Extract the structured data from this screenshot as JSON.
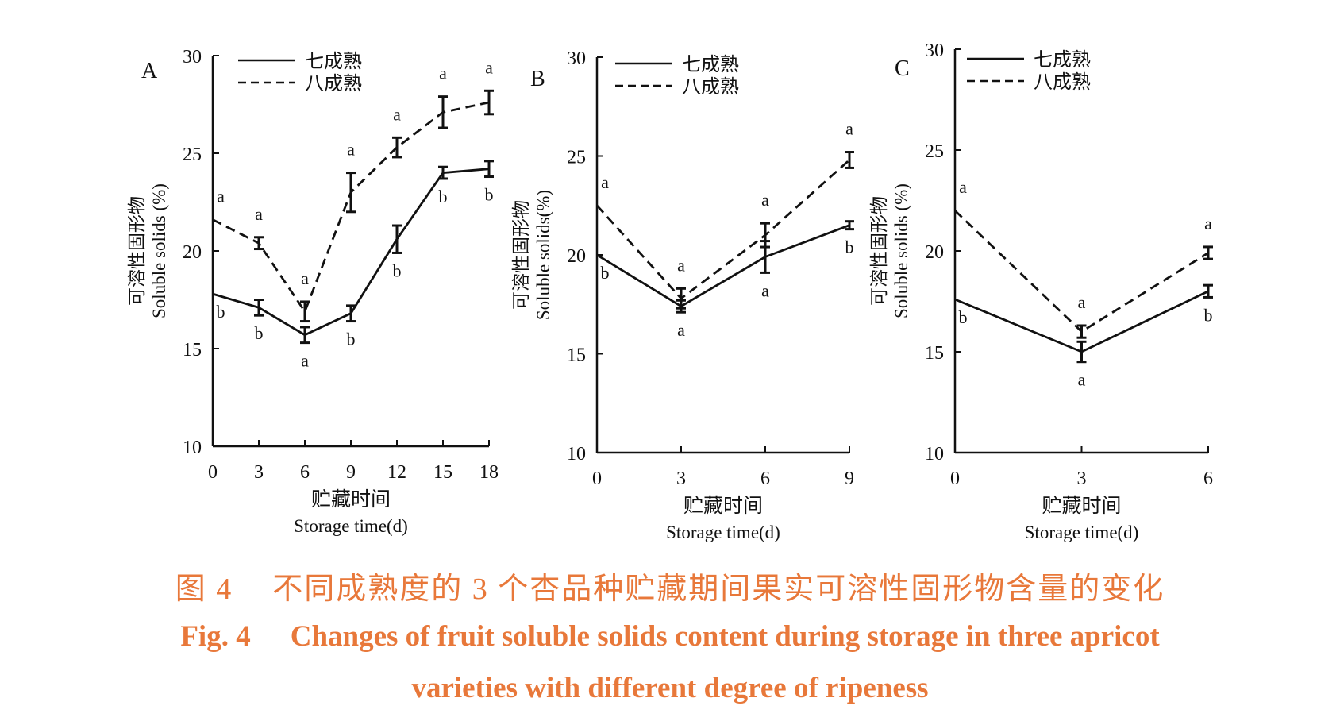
{
  "caption": {
    "cn_prefix": "图 4",
    "cn_text": "不同成熟度的 3 个杏品种贮藏期间果实可溶性固形物含量的变化",
    "en_prefix": "Fig. 4",
    "en_line1": "Changes of fruit soluble solids content during storage in three apricot",
    "en_line2": "varieties with different degree of ripeness"
  },
  "colors": {
    "line": "#111111",
    "caption": "#e8783a"
  },
  "chart_data": [
    {
      "panel": "A",
      "type": "line",
      "x": [
        0,
        3,
        6,
        9,
        12,
        15,
        18
      ],
      "xlim": [
        0,
        18
      ],
      "ylim": [
        10,
        30
      ],
      "yticks": [
        10,
        15,
        20,
        25,
        30
      ],
      "ylabel_cn": "可溶性固形物",
      "ylabel_en": "Soluble solids (%)",
      "xlabel_cn": "贮藏时间",
      "xlabel_en": "Storage time(d)",
      "legend_position": "top-left",
      "series": [
        {
          "name": "七成熟",
          "style": "solid",
          "values": [
            17.8,
            17.1,
            15.7,
            16.8,
            20.6,
            24.0,
            24.2
          ],
          "errors": [
            0,
            0.4,
            0.4,
            0.4,
            0.7,
            0.3,
            0.4
          ],
          "labels": [
            "b",
            "b",
            "a",
            "b",
            "b",
            "b",
            "b"
          ]
        },
        {
          "name": "八成熟",
          "style": "dashed",
          "values": [
            21.6,
            20.4,
            16.9,
            23.0,
            25.3,
            27.1,
            27.6
          ],
          "errors": [
            0,
            0.3,
            0.5,
            1.0,
            0.5,
            0.8,
            0.6
          ],
          "labels": [
            "a",
            "a",
            "a",
            "a",
            "a",
            "a",
            "a"
          ]
        }
      ]
    },
    {
      "panel": "B",
      "type": "line",
      "x": [
        0,
        3,
        6,
        9
      ],
      "xlim": [
        0,
        9
      ],
      "ylim": [
        10,
        30
      ],
      "yticks": [
        10,
        15,
        20,
        25,
        30
      ],
      "ylabel_cn": "可溶性固形物",
      "ylabel_en": "Soluble solids(%)",
      "xlabel_cn": "贮藏时间",
      "xlabel_en": "Storage time(d)",
      "legend_position": "top-left",
      "series": [
        {
          "name": "七成熟",
          "style": "solid",
          "values": [
            20.0,
            17.4,
            19.9,
            21.5
          ],
          "errors": [
            0,
            0.3,
            0.8,
            0.2
          ],
          "labels": [
            "b",
            "a",
            "a",
            "b"
          ]
        },
        {
          "name": "八成熟",
          "style": "dashed",
          "values": [
            22.5,
            17.8,
            21.0,
            24.8
          ],
          "errors": [
            0,
            0.5,
            0.6,
            0.4
          ],
          "labels": [
            "a",
            "a",
            "a",
            "a"
          ]
        }
      ]
    },
    {
      "panel": "C",
      "type": "line",
      "x": [
        0,
        3,
        6
      ],
      "xlim": [
        0,
        6
      ],
      "ylim": [
        10,
        30
      ],
      "yticks": [
        10,
        15,
        20,
        25,
        30
      ],
      "ylabel_cn": "可溶性固形物",
      "ylabel_en": "Soluble solids (%)",
      "xlabel_cn": "贮藏时间",
      "xlabel_en": "Storage time(d)",
      "legend_position": "top-left",
      "series": [
        {
          "name": "七成熟",
          "style": "solid",
          "values": [
            17.6,
            15.0,
            18.0
          ],
          "errors": [
            0,
            0.5,
            0.3
          ],
          "labels": [
            "b",
            "a",
            "b"
          ]
        },
        {
          "name": "八成熟",
          "style": "dashed",
          "values": [
            22.0,
            16.0,
            19.9
          ],
          "errors": [
            0,
            0.3,
            0.3
          ],
          "labels": [
            "a",
            "a",
            "a"
          ]
        }
      ]
    }
  ]
}
